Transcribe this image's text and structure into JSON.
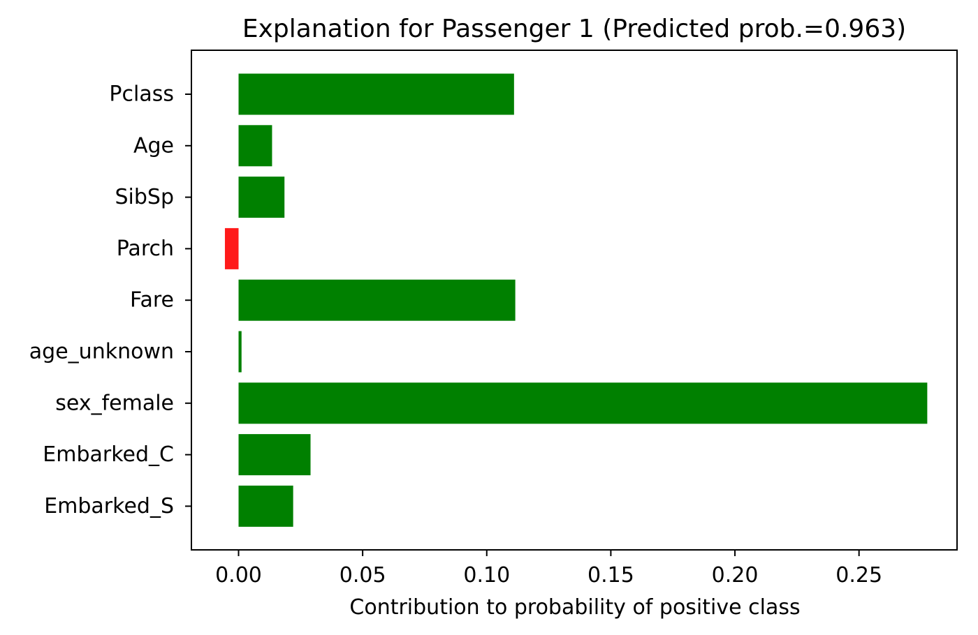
{
  "chart_data": {
    "type": "bar",
    "orientation": "horizontal",
    "title": "Explanation for Passenger 1 (Predicted prob.=0.963)",
    "xlabel": "Contribution to probability of positive class",
    "ylabel": "",
    "categories": [
      "Pclass",
      "Age",
      "SibSp",
      "Parch",
      "Fare",
      "age_unknown",
      "sex_female",
      "Embarked_C",
      "Embarked_S"
    ],
    "values": [
      0.111,
      0.0135,
      0.0185,
      -0.0055,
      0.1115,
      0.0012,
      0.2775,
      0.029,
      0.022
    ],
    "xlim": [
      -0.019,
      0.2895
    ],
    "xticks": [
      0.0,
      0.05,
      0.1,
      0.15,
      0.2,
      0.25
    ],
    "xtick_labels": [
      "0.00",
      "0.05",
      "0.10",
      "0.15",
      "0.20",
      "0.25"
    ],
    "colors": {
      "positive": "#008000",
      "negative": "#ff1a1a",
      "axis": "#000000"
    },
    "grid": false,
    "legend": "none"
  }
}
